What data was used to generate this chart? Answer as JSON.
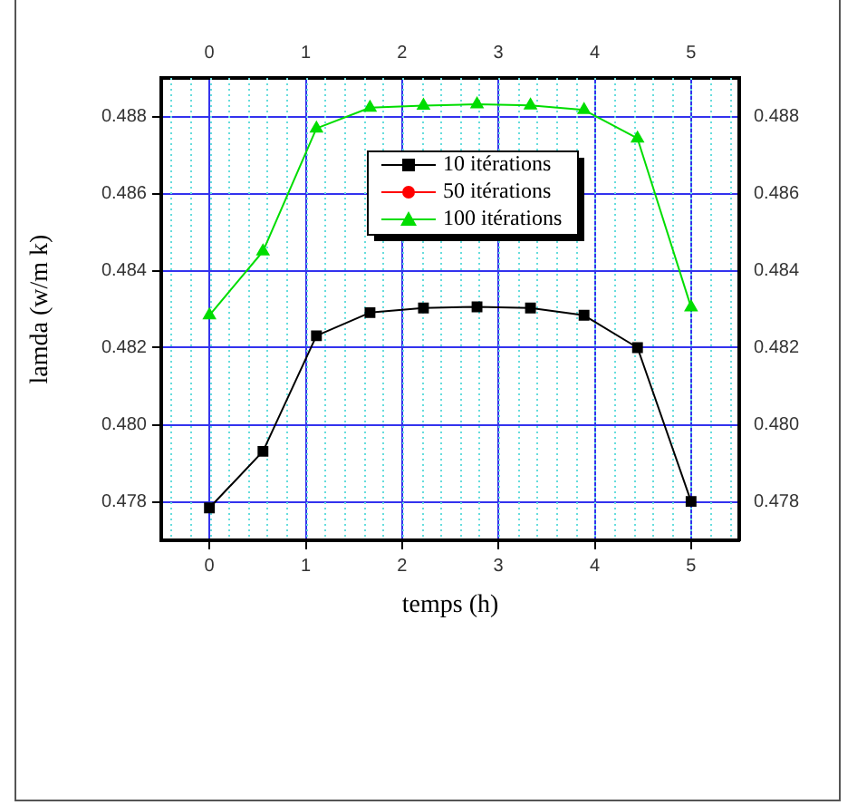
{
  "chart_data": {
    "type": "line",
    "xlabel": "temps (h)",
    "ylabel": "lamda (w/m k)",
    "x": [
      0,
      0.556,
      1.111,
      1.667,
      2.222,
      2.778,
      3.333,
      3.889,
      4.444,
      5
    ],
    "series": [
      {
        "name": "10 itérations",
        "color": "#000000",
        "marker": "square",
        "values": [
          0.47784,
          0.47931,
          0.48231,
          0.48291,
          0.48303,
          0.48306,
          0.48303,
          0.48284,
          0.482,
          0.47801
        ]
      },
      {
        "name": "50 itérations",
        "color": "#ff0000",
        "marker": "circle",
        "values": [
          null,
          null,
          null,
          null,
          null,
          null,
          null,
          null,
          null,
          null
        ]
      },
      {
        "name": "100 itérations",
        "color": "#00dd00",
        "marker": "triangle",
        "values": [
          0.48284,
          0.4845,
          0.48769,
          0.48823,
          0.48828,
          0.48832,
          0.48829,
          0.48817,
          0.48743,
          0.48305
        ]
      }
    ],
    "xlim": [
      -0.5,
      5.5
    ],
    "xticks": [
      0,
      1,
      2,
      3,
      4,
      5
    ],
    "x2lim": [
      -0.5,
      5.5
    ],
    "x2ticks": [
      0,
      1,
      2,
      3,
      4,
      5
    ],
    "ylim": [
      0.477,
      0.489
    ],
    "yticks": [
      0.478,
      {
        "value": 0.48,
        "label": "0.480"
      },
      0.482,
      0.484,
      0.486,
      0.488
    ],
    "y2lim": [
      0.477,
      0.489
    ],
    "y2ticks": [
      0.478,
      {
        "value": 0.48,
        "label": "0.480"
      },
      0.482,
      0.484,
      0.486,
      0.488
    ],
    "grid": true,
    "legend": "top"
  }
}
